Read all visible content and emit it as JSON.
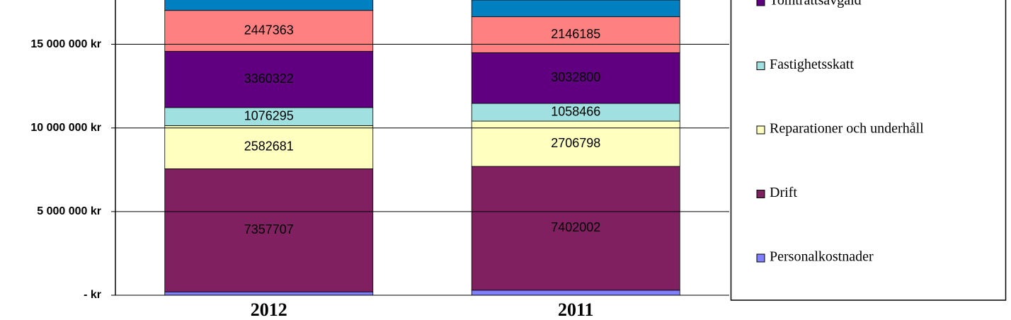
{
  "chart_data": {
    "type": "stacked_bar",
    "categories": [
      "2012",
      "2011"
    ],
    "series": [
      {
        "name": "Personalkostnader",
        "color": "#8080ff",
        "values": [
          200000,
          300000
        ],
        "show_labels": false
      },
      {
        "name": "Drift",
        "color": "#802060",
        "values": [
          7357707,
          7402002
        ],
        "show_labels": true
      },
      {
        "name": "Reparationer och underhåll",
        "color": "#ffffc0",
        "values": [
          2582681,
          2706798
        ],
        "show_labels": true
      },
      {
        "name": "Fastighetsskatt",
        "color": "#a0e0e0",
        "values": [
          1076295,
          1058466
        ],
        "show_labels": true
      },
      {
        "name": "Tomträttsavgäld",
        "color": "#600080",
        "values": [
          3360322,
          3032800
        ],
        "show_labels": true
      },
      {
        "color": "#ff8080",
        "values": [
          2447363,
          2146185
        ],
        "show_labels": true
      },
      {
        "color": "#0080c0",
        "values": [
          1000000,
          1000000
        ],
        "show_labels": false
      }
    ],
    "ylim": [
      0,
      17600000
    ],
    "yticks": [
      {
        "value": 0,
        "label": "- kr"
      },
      {
        "value": 5000000,
        "label": "5 000 000 kr"
      },
      {
        "value": 10000000,
        "label": "10 000 000 kr"
      },
      {
        "value": 15000000,
        "label": "15 000 000 kr"
      }
    ],
    "grid": true
  }
}
